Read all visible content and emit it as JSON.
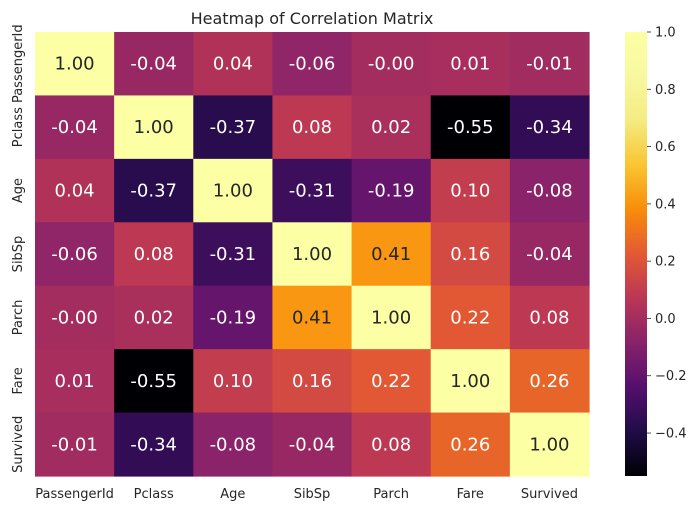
{
  "chart_data": {
    "type": "heatmap",
    "title": "Heatmap of Correlation Matrix",
    "xlabel": "",
    "ylabel": "",
    "labels": [
      "PassengerId",
      "Pclass",
      "Age",
      "SibSp",
      "Parch",
      "Fare",
      "Survived"
    ],
    "matrix": [
      [
        1.0,
        -0.04,
        0.04,
        -0.06,
        -0.0,
        0.01,
        -0.01
      ],
      [
        -0.04,
        1.0,
        -0.37,
        0.08,
        0.02,
        -0.55,
        -0.34
      ],
      [
        0.04,
        -0.37,
        1.0,
        -0.31,
        -0.19,
        0.1,
        -0.08
      ],
      [
        -0.06,
        0.08,
        -0.31,
        1.0,
        0.41,
        0.16,
        -0.04
      ],
      [
        -0.0,
        0.02,
        -0.19,
        0.41,
        1.0,
        0.22,
        0.08
      ],
      [
        0.01,
        -0.55,
        0.1,
        0.16,
        0.22,
        1.0,
        0.26
      ],
      [
        -0.01,
        -0.34,
        -0.08,
        -0.04,
        0.08,
        0.26,
        1.0
      ]
    ],
    "annotations": [
      [
        "1.00",
        "-0.04",
        "0.04",
        "-0.06",
        "-0.00",
        "0.01",
        "-0.01"
      ],
      [
        "-0.04",
        "1.00",
        "-0.37",
        "0.08",
        "0.02",
        "-0.55",
        "-0.34"
      ],
      [
        "0.04",
        "-0.37",
        "1.00",
        "-0.31",
        "-0.19",
        "0.10",
        "-0.08"
      ],
      [
        "-0.06",
        "0.08",
        "-0.31",
        "1.00",
        "0.41",
        "0.16",
        "-0.04"
      ],
      [
        "-0.00",
        "0.02",
        "-0.19",
        "0.41",
        "1.00",
        "0.22",
        "0.08"
      ],
      [
        "0.01",
        "-0.55",
        "0.10",
        "0.16",
        "0.22",
        "1.00",
        "0.26"
      ],
      [
        "-0.01",
        "-0.34",
        "-0.08",
        "-0.04",
        "0.08",
        "0.26",
        "1.00"
      ]
    ],
    "colormap": "inferno",
    "vmin": -0.55,
    "vmax": 1.0,
    "colorbar": {
      "ticks": [
        -0.4,
        -0.2,
        0.0,
        0.2,
        0.4,
        0.6,
        0.8,
        1.0
      ],
      "tick_labels": [
        "−0.4",
        "−0.2",
        "0.0",
        "0.2",
        "0.4",
        "0.6",
        "0.8",
        "1.0"
      ],
      "placement": "right"
    },
    "grid": false
  }
}
